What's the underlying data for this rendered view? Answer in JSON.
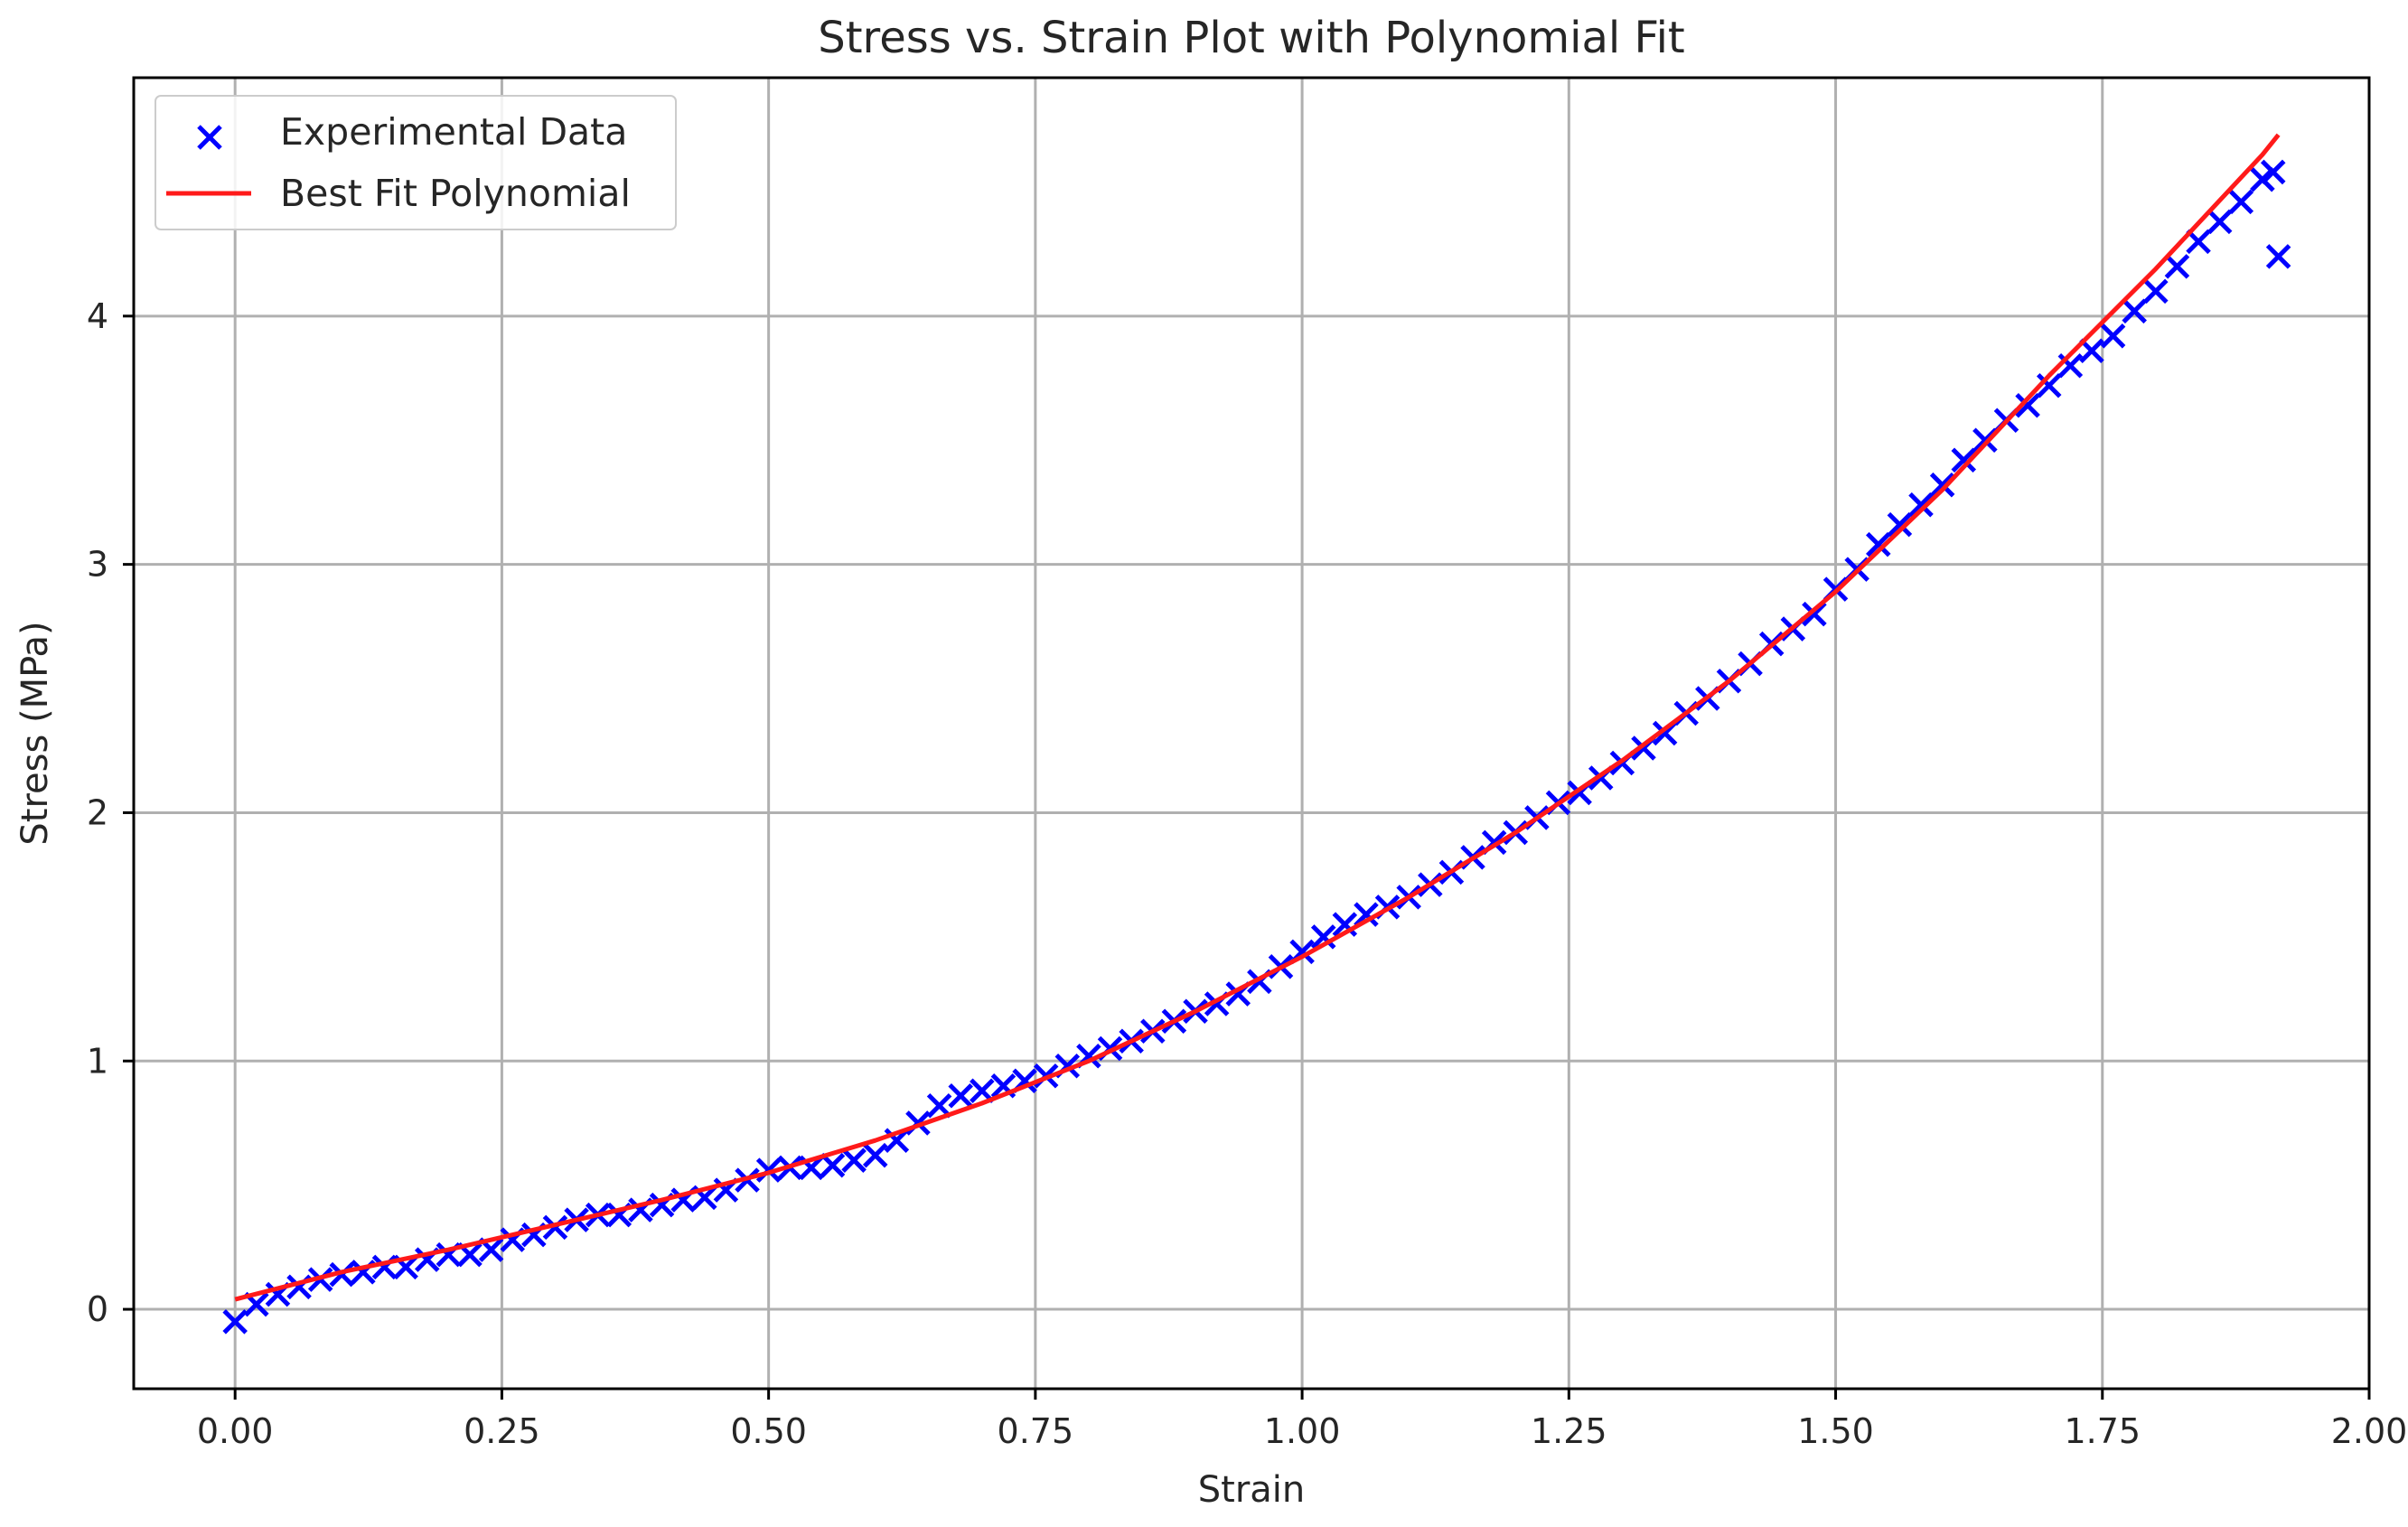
{
  "chart_data": {
    "type": "scatter",
    "title": "Stress vs. Strain Plot with Polynomial Fit",
    "xlabel": "Strain",
    "ylabel": "Stress (MPa)",
    "xlim": [
      -0.095,
      2.0
    ],
    "ylim": [
      -0.32,
      4.96
    ],
    "xticks": [
      0.0,
      0.25,
      0.5,
      0.75,
      1.0,
      1.25,
      1.5,
      1.75,
      2.0
    ],
    "xtick_labels": [
      "0.00",
      "0.25",
      "0.50",
      "0.75",
      "1.00",
      "1.25",
      "1.50",
      "1.75",
      "2.00"
    ],
    "yticks": [
      0,
      1,
      2,
      3,
      4
    ],
    "ytick_labels": [
      "0",
      "1",
      "2",
      "3",
      "4"
    ],
    "grid": true,
    "legend_position": "top-left",
    "colors": {
      "scatter": "#0000ff",
      "fit": "#ff1a1a",
      "grid": "#b0b0b0",
      "axes": "#000000"
    },
    "series": [
      {
        "name": "Experimental Data",
        "kind": "scatter",
        "marker": "x",
        "x": [
          0.0,
          0.02,
          0.04,
          0.06,
          0.08,
          0.1,
          0.12,
          0.14,
          0.16,
          0.18,
          0.2,
          0.22,
          0.24,
          0.26,
          0.28,
          0.3,
          0.32,
          0.34,
          0.36,
          0.38,
          0.4,
          0.42,
          0.44,
          0.46,
          0.48,
          0.5,
          0.52,
          0.54,
          0.56,
          0.58,
          0.6,
          0.62,
          0.64,
          0.66,
          0.68,
          0.7,
          0.72,
          0.74,
          0.76,
          0.78,
          0.8,
          0.82,
          0.84,
          0.86,
          0.88,
          0.9,
          0.92,
          0.94,
          0.96,
          0.98,
          1.0,
          1.02,
          1.04,
          1.06,
          1.08,
          1.1,
          1.12,
          1.14,
          1.16,
          1.18,
          1.2,
          1.22,
          1.24,
          1.26,
          1.28,
          1.3,
          1.32,
          1.34,
          1.36,
          1.38,
          1.4,
          1.42,
          1.44,
          1.46,
          1.48,
          1.5,
          1.52,
          1.54,
          1.56,
          1.58,
          1.6,
          1.62,
          1.64,
          1.66,
          1.68,
          1.7,
          1.72,
          1.74,
          1.76,
          1.78,
          1.8,
          1.82,
          1.84,
          1.86,
          1.88,
          1.9,
          1.91,
          1.915
        ],
        "y": [
          -0.05,
          0.02,
          0.06,
          0.09,
          0.12,
          0.14,
          0.15,
          0.17,
          0.17,
          0.2,
          0.22,
          0.22,
          0.24,
          0.28,
          0.3,
          0.33,
          0.36,
          0.38,
          0.38,
          0.4,
          0.42,
          0.44,
          0.45,
          0.48,
          0.52,
          0.56,
          0.57,
          0.57,
          0.58,
          0.6,
          0.62,
          0.68,
          0.75,
          0.82,
          0.86,
          0.88,
          0.9,
          0.92,
          0.94,
          0.98,
          1.02,
          1.05,
          1.08,
          1.12,
          1.16,
          1.2,
          1.23,
          1.27,
          1.32,
          1.38,
          1.44,
          1.5,
          1.55,
          1.59,
          1.62,
          1.66,
          1.71,
          1.76,
          1.82,
          1.88,
          1.92,
          1.98,
          2.04,
          2.08,
          2.14,
          2.2,
          2.26,
          2.32,
          2.4,
          2.46,
          2.53,
          2.6,
          2.68,
          2.74,
          2.8,
          2.9,
          2.98,
          3.08,
          3.16,
          3.24,
          3.32,
          3.42,
          3.5,
          3.58,
          3.64,
          3.72,
          3.8,
          3.86,
          3.92,
          4.02,
          4.1,
          4.2,
          4.3,
          4.38,
          4.46,
          4.55,
          4.58,
          4.24
        ]
      },
      {
        "name": "Best Fit Polynomial",
        "kind": "line",
        "x": [
          0.0,
          0.1,
          0.2,
          0.3,
          0.4,
          0.5,
          0.6,
          0.7,
          0.8,
          0.9,
          1.0,
          1.1,
          1.2,
          1.3,
          1.4,
          1.5,
          1.6,
          1.7,
          1.8,
          1.9,
          1.915
        ],
        "y": [
          0.04,
          0.15,
          0.24,
          0.34,
          0.44,
          0.55,
          0.68,
          0.83,
          1.0,
          1.2,
          1.42,
          1.66,
          1.92,
          2.21,
          2.53,
          2.89,
          3.3,
          3.76,
          4.19,
          4.65,
          4.73
        ]
      }
    ]
  }
}
